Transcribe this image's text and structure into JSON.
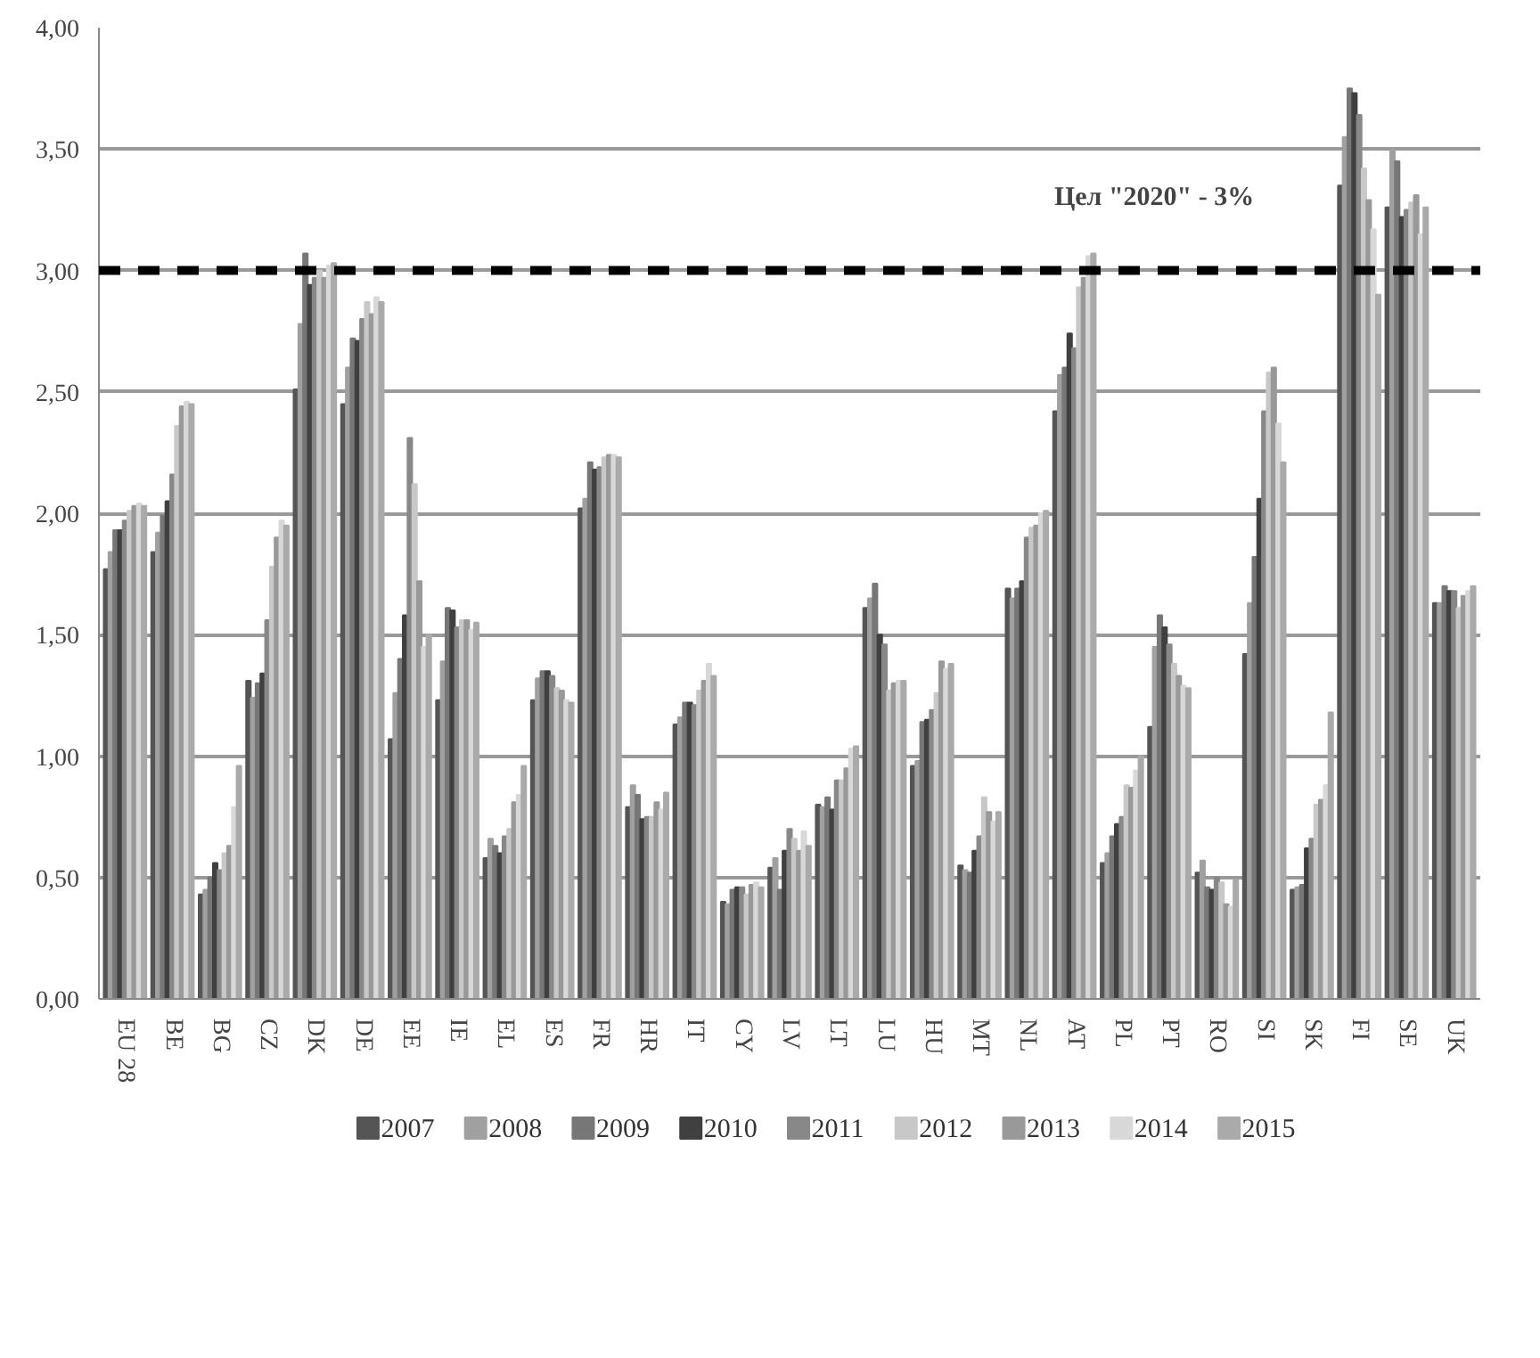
{
  "chart_data": {
    "type": "bar",
    "categories": [
      "EU 28",
      "BE",
      "BG",
      "CZ",
      "DK",
      "DE",
      "EE",
      "IE",
      "EL",
      "ES",
      "FR",
      "HR",
      "IT",
      "CY",
      "LV",
      "LT",
      "LU",
      "HU",
      "MT",
      "NL",
      "AT",
      "PL",
      "PT",
      "RO",
      "SI",
      "SK",
      "FI",
      "SE",
      "UK"
    ],
    "series": [
      {
        "name": "2007",
        "color": "#555555",
        "values": [
          1.77,
          1.84,
          0.43,
          1.31,
          2.51,
          2.45,
          1.07,
          1.23,
          0.58,
          1.23,
          2.02,
          0.79,
          1.13,
          0.4,
          0.54,
          0.8,
          1.61,
          0.96,
          0.55,
          1.69,
          2.42,
          0.56,
          1.12,
          0.52,
          1.42,
          0.45,
          3.35,
          3.26,
          1.63
        ]
      },
      {
        "name": "2008",
        "color": "#a0a0a0",
        "values": [
          1.84,
          1.92,
          0.45,
          1.24,
          2.78,
          2.6,
          1.26,
          1.39,
          0.66,
          1.32,
          2.06,
          0.88,
          1.16,
          0.39,
          0.58,
          0.79,
          1.65,
          0.98,
          0.53,
          1.65,
          2.57,
          0.6,
          1.45,
          0.57,
          1.63,
          0.46,
          3.55,
          3.5,
          1.63
        ]
      },
      {
        "name": "2009",
        "color": "#777777",
        "values": [
          1.93,
          1.99,
          0.5,
          1.3,
          3.07,
          2.72,
          1.4,
          1.61,
          0.63,
          1.35,
          2.21,
          0.84,
          1.22,
          0.45,
          0.45,
          0.83,
          1.71,
          1.14,
          0.52,
          1.69,
          2.6,
          0.67,
          1.58,
          0.46,
          1.82,
          0.47,
          3.75,
          3.45,
          1.7
        ]
      },
      {
        "name": "2010",
        "color": "#404040",
        "values": [
          1.93,
          2.05,
          0.56,
          1.34,
          2.94,
          2.71,
          1.58,
          1.6,
          0.6,
          1.35,
          2.18,
          0.74,
          1.22,
          0.46,
          0.61,
          0.78,
          1.5,
          1.15,
          0.61,
          1.72,
          2.74,
          0.72,
          1.53,
          0.45,
          2.06,
          0.62,
          3.73,
          3.22,
          1.68
        ]
      },
      {
        "name": "2011",
        "color": "#888888",
        "values": [
          1.97,
          2.16,
          0.53,
          1.56,
          2.97,
          2.8,
          2.31,
          1.53,
          0.67,
          1.33,
          2.19,
          0.75,
          1.21,
          0.46,
          0.7,
          0.9,
          1.46,
          1.19,
          0.67,
          1.9,
          2.68,
          0.75,
          1.46,
          0.5,
          2.42,
          0.66,
          3.64,
          3.25,
          1.68
        ]
      },
      {
        "name": "2012",
        "color": "#c8c8c8",
        "values": [
          2.01,
          2.36,
          0.6,
          1.78,
          3.0,
          2.87,
          2.12,
          1.56,
          0.7,
          1.28,
          2.23,
          0.75,
          1.27,
          0.43,
          0.66,
          0.9,
          1.27,
          1.26,
          0.83,
          1.94,
          2.93,
          0.88,
          1.38,
          0.48,
          2.58,
          0.8,
          3.42,
          3.28,
          1.61
        ]
      },
      {
        "name": "2013",
        "color": "#999999",
        "values": [
          2.03,
          2.44,
          0.63,
          1.9,
          2.97,
          2.82,
          1.72,
          1.56,
          0.81,
          1.27,
          2.24,
          0.81,
          1.31,
          0.47,
          0.61,
          0.95,
          1.3,
          1.39,
          0.77,
          1.95,
          2.97,
          0.87,
          1.33,
          0.39,
          2.6,
          0.82,
          3.29,
          3.31,
          1.66
        ]
      },
      {
        "name": "2014",
        "color": "#d8d8d8",
        "values": [
          2.04,
          2.46,
          0.79,
          1.97,
          3.02,
          2.89,
          1.45,
          1.52,
          0.84,
          1.23,
          2.24,
          0.78,
          1.38,
          0.48,
          0.69,
          1.03,
          1.31,
          1.36,
          0.73,
          2.0,
          3.06,
          0.94,
          1.29,
          0.38,
          2.37,
          0.88,
          3.17,
          3.15,
          1.68
        ]
      },
      {
        "name": "2015",
        "color": "#aaaaaa",
        "values": [
          2.03,
          2.45,
          0.96,
          1.95,
          3.03,
          2.87,
          1.5,
          1.55,
          0.96,
          1.22,
          2.23,
          0.85,
          1.33,
          0.46,
          0.63,
          1.04,
          1.31,
          1.38,
          0.77,
          2.01,
          3.07,
          1.0,
          1.28,
          0.49,
          2.21,
          1.18,
          2.9,
          3.26,
          1.7
        ]
      }
    ],
    "ylim": [
      0,
      4
    ],
    "yticks": [
      {
        "value": 0,
        "label": "0,00"
      },
      {
        "value": 0.5,
        "label": "0,50"
      },
      {
        "value": 1,
        "label": "1,00"
      },
      {
        "value": 1.5,
        "label": "1,50"
      },
      {
        "value": 2,
        "label": "2,00"
      },
      {
        "value": 2.5,
        "label": "2,50"
      },
      {
        "value": 3,
        "label": "3,00"
      },
      {
        "value": 3.5,
        "label": "3,50"
      },
      {
        "value": 4,
        "label": "4,00"
      }
    ],
    "grid": "y",
    "legend": "bottom",
    "ref_lines": [
      {
        "axis": "y",
        "value": 3,
        "color": "#000000",
        "line_style": "dashed"
      }
    ],
    "annotations": [
      "Цел \"2020\" -  3%"
    ]
  }
}
